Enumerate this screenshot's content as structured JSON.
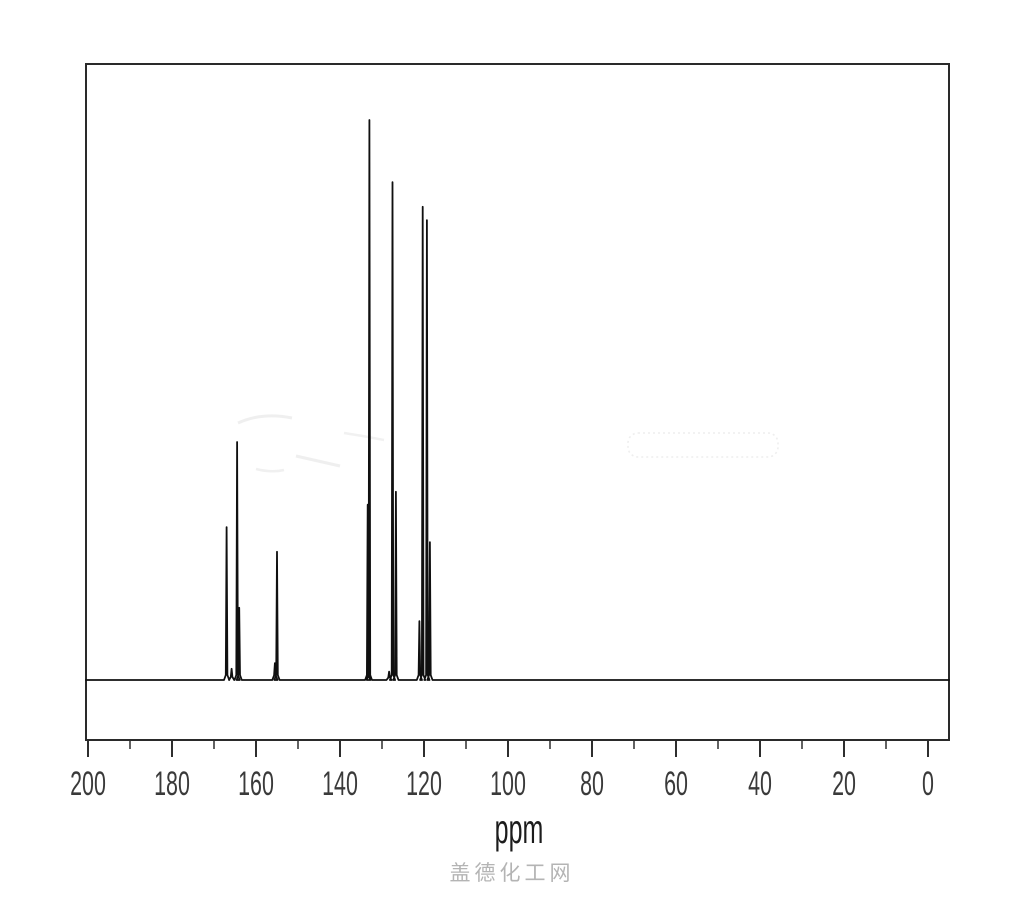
{
  "chart_data": {
    "type": "line",
    "subtype": "nmr-spectrum",
    "xlabel": "ppm",
    "x_axis": {
      "min": 0,
      "max": 200,
      "reversed": true,
      "major_tick_step": 20,
      "minor_tick_step": 10,
      "tick_labels": [
        "200",
        "180",
        "160",
        "140",
        "120",
        "100",
        "80",
        "60",
        "40",
        "20",
        "0"
      ]
    },
    "y_axis": {
      "visible": false
    },
    "grid": false,
    "legend": false,
    "peaks": [
      {
        "ppm": 167.0,
        "intensity": 0.273
      },
      {
        "ppm": 165.8,
        "intensity": 0.02
      },
      {
        "ppm": 164.5,
        "intensity": 0.425
      },
      {
        "ppm": 164.0,
        "intensity": 0.129
      },
      {
        "ppm": 155.5,
        "intensity": 0.03
      },
      {
        "ppm": 155.0,
        "intensity": 0.229
      },
      {
        "ppm": 133.4,
        "intensity": 0.313
      },
      {
        "ppm": 133.0,
        "intensity": 1.0
      },
      {
        "ppm": 128.3,
        "intensity": 0.015
      },
      {
        "ppm": 127.5,
        "intensity": 0.889
      },
      {
        "ppm": 126.7,
        "intensity": 0.336
      },
      {
        "ppm": 121.1,
        "intensity": 0.105
      },
      {
        "ppm": 120.3,
        "intensity": 0.845
      },
      {
        "ppm": 119.3,
        "intensity": 0.821
      },
      {
        "ppm": 118.6,
        "intensity": 0.246
      }
    ]
  },
  "labels": {
    "axis_label": "ppm",
    "watermark": "盖德化工网"
  },
  "colors": {
    "trace": "#101010",
    "box_border": "#2a2a2a",
    "tick": "#2e2e2e",
    "tick_label": "#3a3a3a",
    "watermark": "#b4b4b4",
    "background": "#ffffff",
    "artifact": "#ededed"
  }
}
